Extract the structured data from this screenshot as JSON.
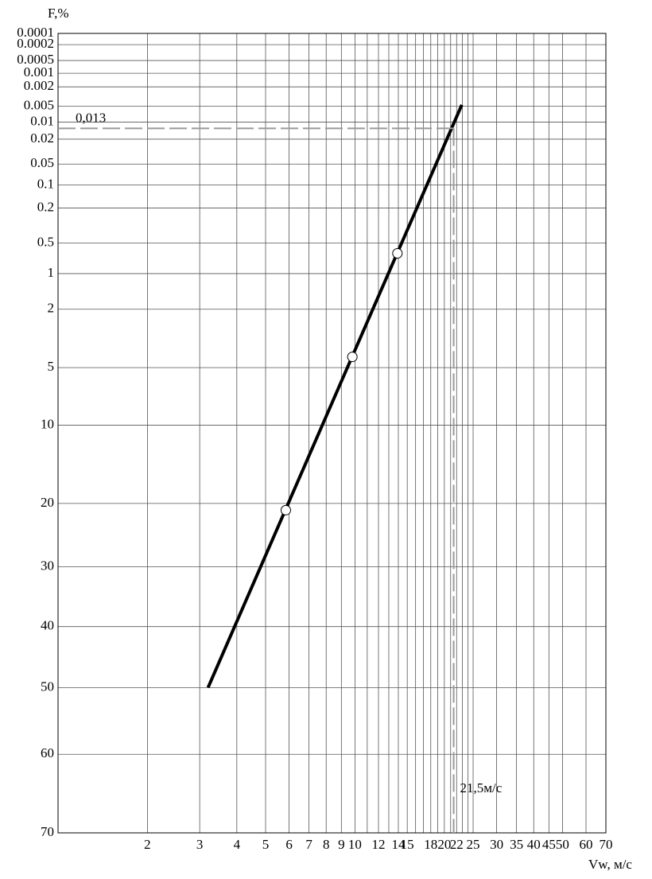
{
  "chart_data": {
    "type": "line",
    "y_label": "F,%",
    "x_label": "Vw, м/с",
    "x_scale": "log",
    "y_scale": "weibull",
    "xlim": [
      1,
      70
    ],
    "ylim": [
      70,
      0.0001
    ],
    "xticks": [
      2,
      3,
      4,
      5,
      6,
      7,
      8,
      9,
      10,
      12,
      14,
      15,
      18,
      20,
      22,
      25,
      30,
      35,
      40,
      45,
      50,
      60,
      70
    ],
    "xminor": [
      11,
      13,
      16,
      17,
      19,
      21,
      23,
      24
    ],
    "yticks": [
      0.0001,
      0.0002,
      0.0005,
      0.001,
      0.002,
      0.005,
      0.01,
      0.02,
      0.05,
      0.1,
      0.2,
      0.5,
      1,
      2,
      5,
      10,
      20,
      30,
      40,
      50,
      60,
      70
    ],
    "grid": true,
    "color": "#000000",
    "line": {
      "x": [
        3.2,
        22.9
      ],
      "values": [
        50,
        0.0047
      ]
    },
    "points": {
      "x": [
        5.85,
        9.8,
        13.9
      ],
      "values": [
        21,
        4.3,
        0.64
      ]
    },
    "annotations": [
      {
        "text": "0,013",
        "y": 0.013
      },
      {
        "text": "21,5м/с",
        "x": 21.5
      }
    ]
  }
}
